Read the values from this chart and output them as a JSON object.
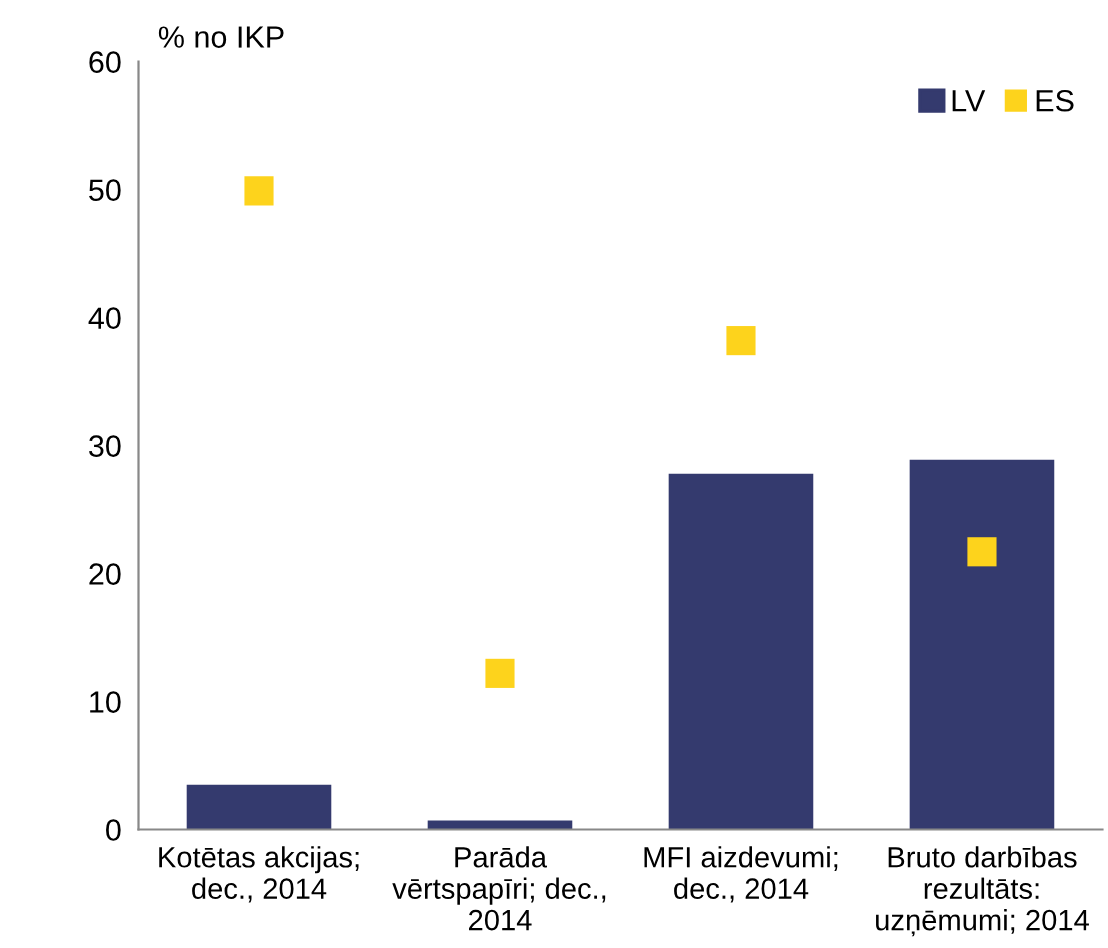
{
  "chart_data": {
    "type": "bar",
    "ylabel": "% no IKP",
    "categories": [
      "Kotētas akcijas;\ndec., 2014",
      "Parāda\nvērtspapīri; dec.,\n2014",
      "MFI aizdevumi;\ndec., 2014",
      "Bruto darbības\nrezultāts:\nuzņēmumi; 2014"
    ],
    "series": [
      {
        "name": "LV",
        "color": "#343a6e",
        "values": [
          3.5,
          0.7,
          27.8,
          28.9
        ]
      },
      {
        "name": "ES",
        "type": "scatter",
        "color": "#fdd31c",
        "values": [
          49.9,
          12.2,
          38.2,
          21.7
        ]
      }
    ],
    "ylim": [
      0,
      60
    ],
    "yticks": [
      0,
      10,
      20,
      30,
      40,
      50,
      60
    ],
    "grid": false,
    "legend": "top right",
    "marker": "square"
  }
}
